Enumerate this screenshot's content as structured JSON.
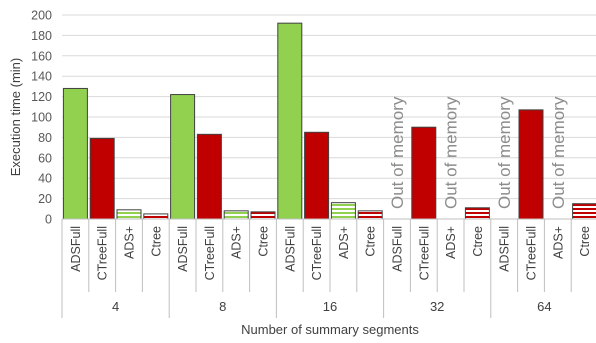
{
  "chart_data": {
    "type": "bar",
    "title": "",
    "xlabel": "Number of summary segments",
    "ylabel": "Execution time (min)",
    "ylim": [
      0,
      200
    ],
    "yticks": [
      0,
      20,
      40,
      60,
      80,
      100,
      120,
      140,
      160,
      180,
      200
    ],
    "grid": true,
    "groups": [
      "4",
      "8",
      "16",
      "32",
      "64"
    ],
    "methods": [
      "ADSFull",
      "CTreeFull",
      "ADS+",
      "Ctree"
    ],
    "values": [
      [
        128,
        79,
        9,
        5
      ],
      [
        122,
        83,
        8,
        7
      ],
      [
        192,
        85,
        16,
        8
      ],
      [
        null,
        90,
        null,
        11
      ],
      [
        null,
        107,
        null,
        15
      ]
    ],
    "annotation_text": "Out of memory",
    "annotations": [
      {
        "group": 3,
        "method": 0
      },
      {
        "group": 3,
        "method": 2
      },
      {
        "group": 4,
        "method": 0
      },
      {
        "group": 4,
        "method": 2
      }
    ],
    "colors": {
      "ADSFull": "#92d050",
      "CTreeFull": "#c00000",
      "ADS+": "#92d050",
      "Ctree": "#c00000",
      "grid": "#d9d9d9",
      "axis": "#bfbfbf",
      "annotation": "#8c8c8c"
    },
    "patterns": {
      "ADSFull": "solid",
      "CTreeFull": "solid",
      "ADS+": "horizontal-stripes",
      "Ctree": "horizontal-stripes"
    }
  }
}
